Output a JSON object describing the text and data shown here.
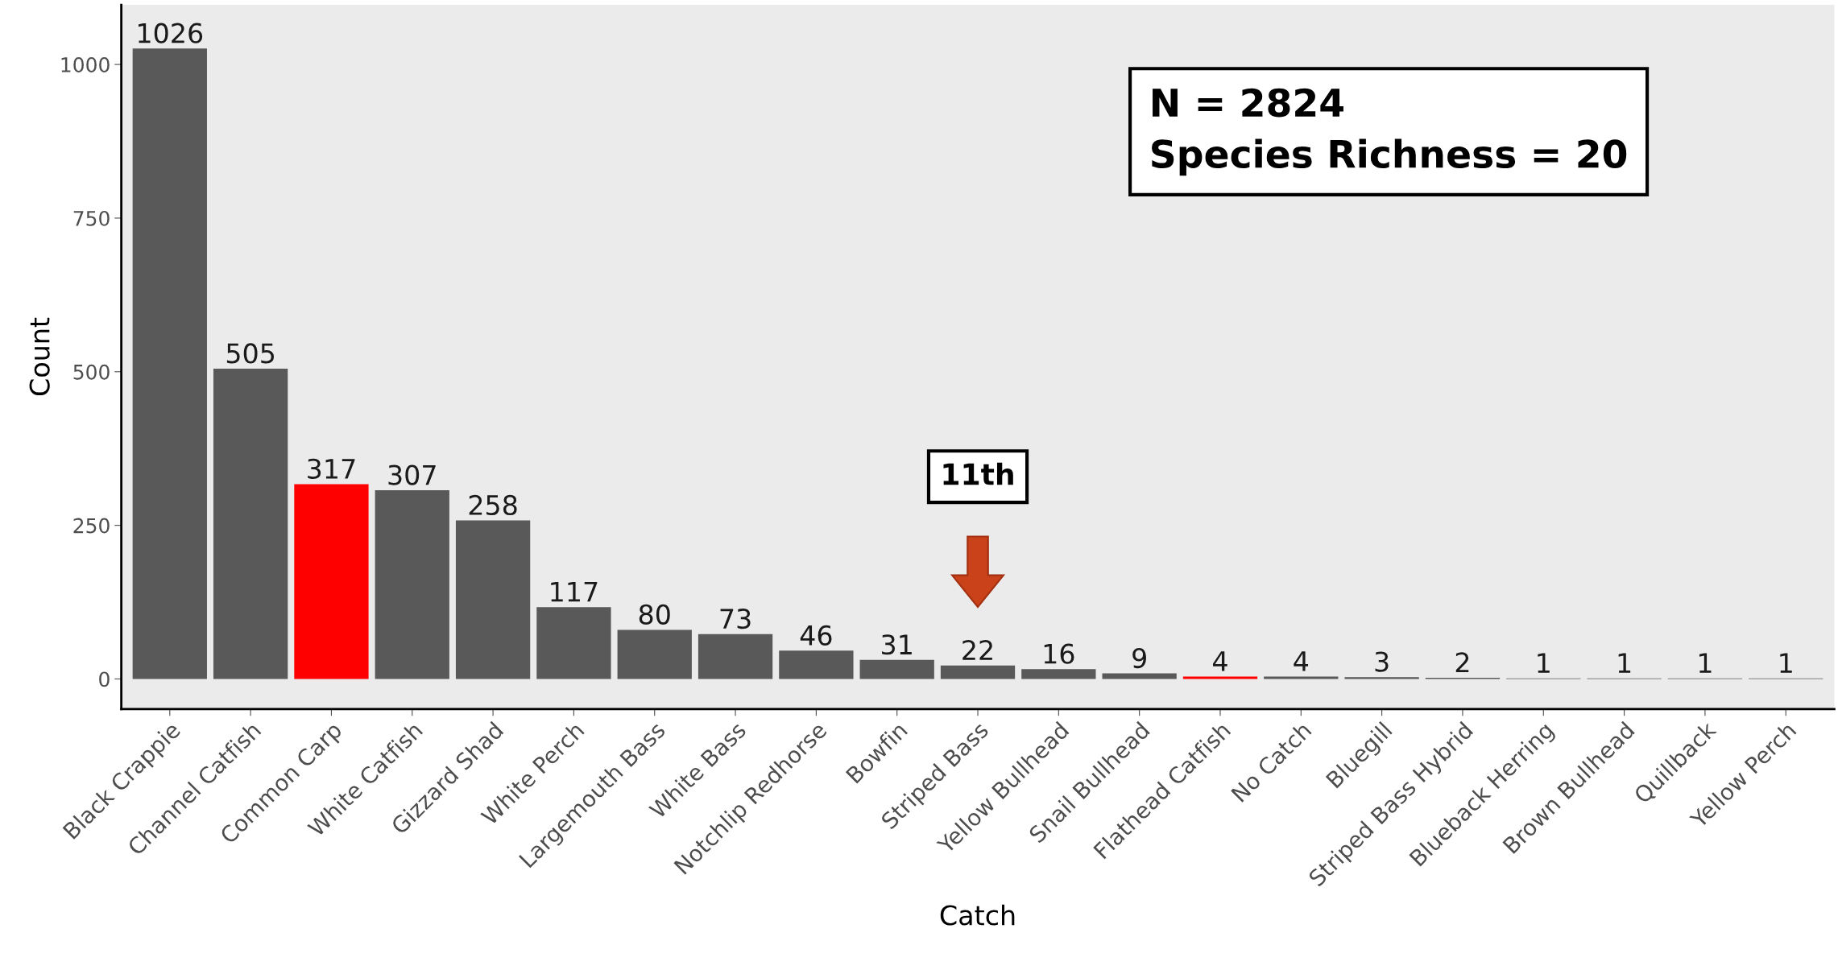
{
  "chart_data": {
    "type": "bar",
    "xlabel": "Catch",
    "ylabel": "Count",
    "categories": [
      "Black Crappie",
      "Channel Catfish",
      "Common Carp",
      "White Catfish",
      "Gizzard Shad",
      "White Perch",
      "Largemouth Bass",
      "White Bass",
      "Notchlip Redhorse",
      "Bowfin",
      "Striped Bass",
      "Yellow Bullhead",
      "Snail Bullhead",
      "Flathead Catfish",
      "No Catch",
      "Bluegill",
      "Striped Bass Hybrid",
      "Blueback Herring",
      "Brown Bullhead",
      "Quillback",
      "Yellow Perch"
    ],
    "values": [
      1026,
      505,
      317,
      307,
      258,
      117,
      80,
      73,
      46,
      31,
      22,
      16,
      9,
      4,
      4,
      3,
      2,
      1,
      1,
      1,
      1
    ],
    "colors": [
      "#595959",
      "#595959",
      "#ff0000",
      "#595959",
      "#595959",
      "#595959",
      "#595959",
      "#595959",
      "#595959",
      "#595959",
      "#595959",
      "#595959",
      "#595959",
      "#ff0000",
      "#595959",
      "#595959",
      "#595959",
      "#595959",
      "#595959",
      "#595959",
      "#595959"
    ],
    "data_labels": true,
    "ylim": [
      -49,
      1097
    ],
    "yticks": [
      0,
      250,
      500,
      750,
      1000
    ],
    "grid": false,
    "legend": false,
    "annotations": [
      "N = 2824\nSpecies Richness = 20",
      "11th"
    ]
  }
}
